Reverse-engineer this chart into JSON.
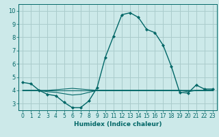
{
  "xlabel": "Humidex (Indice chaleur)",
  "background_color": "#cce9e9",
  "grid_color": "#aacccc",
  "line_color": "#006666",
  "xlim": [
    -0.5,
    23.5
  ],
  "ylim": [
    2.5,
    10.5
  ],
  "xticks": [
    0,
    1,
    2,
    3,
    4,
    5,
    6,
    7,
    8,
    9,
    10,
    11,
    12,
    13,
    14,
    15,
    16,
    17,
    18,
    19,
    20,
    21,
    22,
    23
  ],
  "yticks": [
    3,
    4,
    5,
    6,
    7,
    8,
    9,
    10
  ],
  "series1_x": [
    0,
    1,
    2,
    3,
    4,
    5,
    6,
    7,
    8,
    9,
    10,
    11,
    12,
    13,
    14,
    15,
    16,
    17,
    18,
    19,
    20,
    21,
    22,
    23
  ],
  "series1_y": [
    4.6,
    4.5,
    4.0,
    3.7,
    3.6,
    3.1,
    2.7,
    2.7,
    3.2,
    4.2,
    6.5,
    8.1,
    9.7,
    9.85,
    9.5,
    8.6,
    8.35,
    7.4,
    5.8,
    3.85,
    3.8,
    4.4,
    4.1,
    4.1
  ],
  "series2_x": [
    0,
    1,
    2,
    3,
    4,
    5,
    6,
    7,
    8,
    9,
    10,
    11,
    12,
    13,
    14,
    15,
    16,
    17,
    18,
    19,
    20,
    21,
    22,
    23
  ],
  "series2_y": [
    4.0,
    4.0,
    4.0,
    3.9,
    3.85,
    3.75,
    3.65,
    3.7,
    3.85,
    4.0,
    4.0,
    4.0,
    4.0,
    4.0,
    4.0,
    4.0,
    4.0,
    4.0,
    4.0,
    4.0,
    3.9,
    4.0,
    4.0,
    4.0
  ],
  "series3_x": [
    0,
    1,
    2,
    3,
    4,
    5,
    6,
    7,
    8,
    9,
    10,
    11,
    12,
    13,
    14,
    15,
    16,
    17,
    18,
    19,
    20,
    21,
    22,
    23
  ],
  "series3_y": [
    4.0,
    4.0,
    4.0,
    4.0,
    4.0,
    4.0,
    4.0,
    4.0,
    4.0,
    4.0,
    4.0,
    4.0,
    4.0,
    4.0,
    4.0,
    4.0,
    4.0,
    4.0,
    4.0,
    4.0,
    4.0,
    4.0,
    4.0,
    4.0
  ],
  "series4_x": [
    0,
    1,
    2,
    3,
    4,
    5,
    6,
    7,
    8,
    9,
    10,
    11,
    12,
    13,
    14,
    15,
    16,
    17,
    18,
    19,
    20,
    21,
    22,
    23
  ],
  "series4_y": [
    4.0,
    4.0,
    4.0,
    4.0,
    4.05,
    4.1,
    4.15,
    4.1,
    4.05,
    4.0,
    4.0,
    4.0,
    4.0,
    4.0,
    4.0,
    4.0,
    4.0,
    4.0,
    4.0,
    4.0,
    4.0,
    4.0,
    4.0,
    4.0
  ]
}
